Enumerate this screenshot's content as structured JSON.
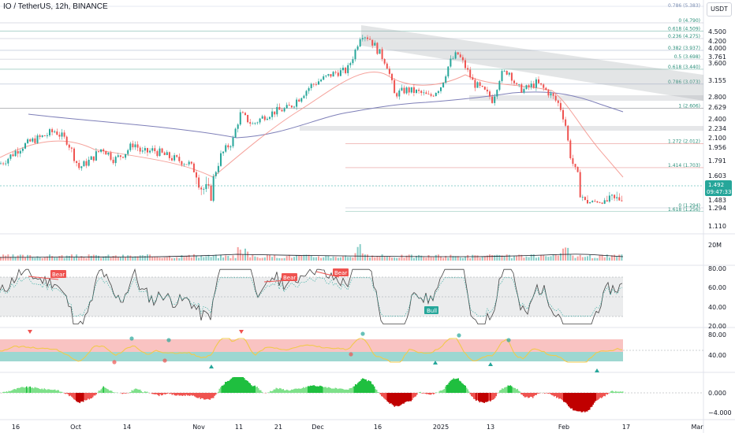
{
  "header": {
    "title": "IO / TetherUS, 12h, BINANCE",
    "unit": "USDT"
  },
  "price_axis": {
    "ticks": [
      "4.500",
      "4.200",
      "4.000",
      "3.761",
      "3.600",
      "3.155",
      "2.800",
      "2.629",
      "2.400",
      "2.234",
      "2.100",
      "1.956",
      "1.791",
      "1.603",
      "1.483",
      "1.294",
      "1.110"
    ],
    "current_price": "1.492",
    "countdown": "09:47:33",
    "volume_tick": "20M"
  },
  "rsi_axis": {
    "ticks": [
      "80.00",
      "60.00",
      "40.00",
      "20.00"
    ]
  },
  "osc_axis": {
    "ticks": [
      "80.00",
      "40.00"
    ]
  },
  "macd_axis": {
    "ticks": [
      "0.000",
      "−4.000"
    ]
  },
  "time_axis": {
    "labels": [
      "16",
      "Oct",
      "14",
      "Nov",
      "11",
      "21",
      "Dec",
      "16",
      "2025",
      "13",
      "Feb",
      "17",
      "Mar"
    ]
  },
  "fib_levels": [
    {
      "label": "0 (4.790)",
      "price": 4.79,
      "color": "#8a94a6"
    },
    {
      "label": "0.618 (4.509)",
      "price": 4.509,
      "color": "#2a8f7a"
    },
    {
      "label": "0.236 (4.275)",
      "price": 4.275,
      "color": "#8a94a6"
    },
    {
      "label": "0.382 (3.937)",
      "price": 3.937,
      "color": "#7c8fb3"
    },
    {
      "label": "0.5 (3.698)",
      "price": 3.698,
      "color": "#8a94a6"
    },
    {
      "label": "0.618 (3.440)",
      "price": 3.44,
      "color": "#2a8f7a"
    },
    {
      "label": "0.786 (3.073)",
      "price": 3.073,
      "color": "#7c8fb3"
    },
    {
      "label": "1 (2.606)",
      "price": 2.606,
      "color": "#131722"
    },
    {
      "label": "1.272 (2.012)",
      "price": 2.012,
      "color": "#d9534f"
    },
    {
      "label": "1.414 (1.703)",
      "price": 1.703,
      "color": "#d9534f"
    },
    {
      "label": "0 (1.294)",
      "price": 1.294,
      "color": "#8a94a6"
    },
    {
      "label": "1.618 (1.256)",
      "price": 1.256,
      "color": "#2a8f7a"
    }
  ],
  "top_fib_label": "0.786 (5.383)",
  "signals": {
    "bear": "Bear",
    "bull": "Bull"
  },
  "colors": {
    "up": "#26a69a",
    "down": "#ef5350",
    "ma_slow": "#7e7fb8",
    "ma_fast": "#f28b82",
    "rsi": "#555555"
  },
  "chart_data": {
    "type": "candlestick",
    "title": "IO / TetherUS, 12h, BINANCE",
    "unit": "USDT",
    "x_labels": [
      "16",
      "Oct",
      "14",
      "Nov",
      "11",
      "21",
      "Dec",
      "16",
      "2025",
      "13",
      "Feb",
      "17",
      "Mar"
    ],
    "price_range": [
      1.11,
      4.79
    ],
    "close_path": [
      {
        "x": 0,
        "y": 1.75
      },
      {
        "x": 10,
        "y": 1.82
      },
      {
        "x": 25,
        "y": 1.95
      },
      {
        "x": 40,
        "y": 2.05
      },
      {
        "x": 55,
        "y": 2.12
      },
      {
        "x": 70,
        "y": 2.2
      },
      {
        "x": 85,
        "y": 2.05
      },
      {
        "x": 100,
        "y": 1.7
      },
      {
        "x": 115,
        "y": 1.8
      },
      {
        "x": 130,
        "y": 1.95
      },
      {
        "x": 145,
        "y": 1.8
      },
      {
        "x": 160,
        "y": 1.9
      },
      {
        "x": 170,
        "y": 2.02
      },
      {
        "x": 180,
        "y": 1.88
      },
      {
        "x": 195,
        "y": 1.92
      },
      {
        "x": 210,
        "y": 1.85
      },
      {
        "x": 225,
        "y": 1.8
      },
      {
        "x": 240,
        "y": 1.75
      },
      {
        "x": 255,
        "y": 1.55
      },
      {
        "x": 268,
        "y": 1.5
      },
      {
        "x": 280,
        "y": 1.85
      },
      {
        "x": 295,
        "y": 2.05
      },
      {
        "x": 305,
        "y": 2.5
      },
      {
        "x": 320,
        "y": 2.3
      },
      {
        "x": 335,
        "y": 2.45
      },
      {
        "x": 350,
        "y": 2.55
      },
      {
        "x": 365,
        "y": 2.6
      },
      {
        "x": 380,
        "y": 2.8
      },
      {
        "x": 395,
        "y": 3.05
      },
      {
        "x": 410,
        "y": 3.2
      },
      {
        "x": 425,
        "y": 3.35
      },
      {
        "x": 440,
        "y": 3.4
      },
      {
        "x": 450,
        "y": 3.9
      },
      {
        "x": 458,
        "y": 4.45
      },
      {
        "x": 468,
        "y": 4.3
      },
      {
        "x": 480,
        "y": 3.9
      },
      {
        "x": 490,
        "y": 3.6
      },
      {
        "x": 500,
        "y": 2.85
      },
      {
        "x": 515,
        "y": 2.95
      },
      {
        "x": 530,
        "y": 2.9
      },
      {
        "x": 545,
        "y": 2.8
      },
      {
        "x": 560,
        "y": 3.05
      },
      {
        "x": 570,
        "y": 3.6
      },
      {
        "x": 580,
        "y": 3.85
      },
      {
        "x": 590,
        "y": 3.5
      },
      {
        "x": 600,
        "y": 3.1
      },
      {
        "x": 615,
        "y": 2.9
      },
      {
        "x": 625,
        "y": 2.75
      },
      {
        "x": 635,
        "y": 3.3
      },
      {
        "x": 645,
        "y": 3.4
      },
      {
        "x": 655,
        "y": 3.0
      },
      {
        "x": 665,
        "y": 2.95
      },
      {
        "x": 680,
        "y": 3.1
      },
      {
        "x": 695,
        "y": 2.9
      },
      {
        "x": 710,
        "y": 2.65
      },
      {
        "x": 717,
        "y": 2.3
      },
      {
        "x": 722,
        "y": 1.9
      },
      {
        "x": 728,
        "y": 1.7
      },
      {
        "x": 735,
        "y": 1.55
      },
      {
        "x": 745,
        "y": 1.42
      },
      {
        "x": 755,
        "y": 1.45
      },
      {
        "x": 765,
        "y": 1.43
      },
      {
        "x": 775,
        "y": 1.47
      },
      {
        "x": 790,
        "y": 1.492
      }
    ],
    "rsi_range": [
      20,
      80
    ],
    "volume_tick": "20M"
  }
}
